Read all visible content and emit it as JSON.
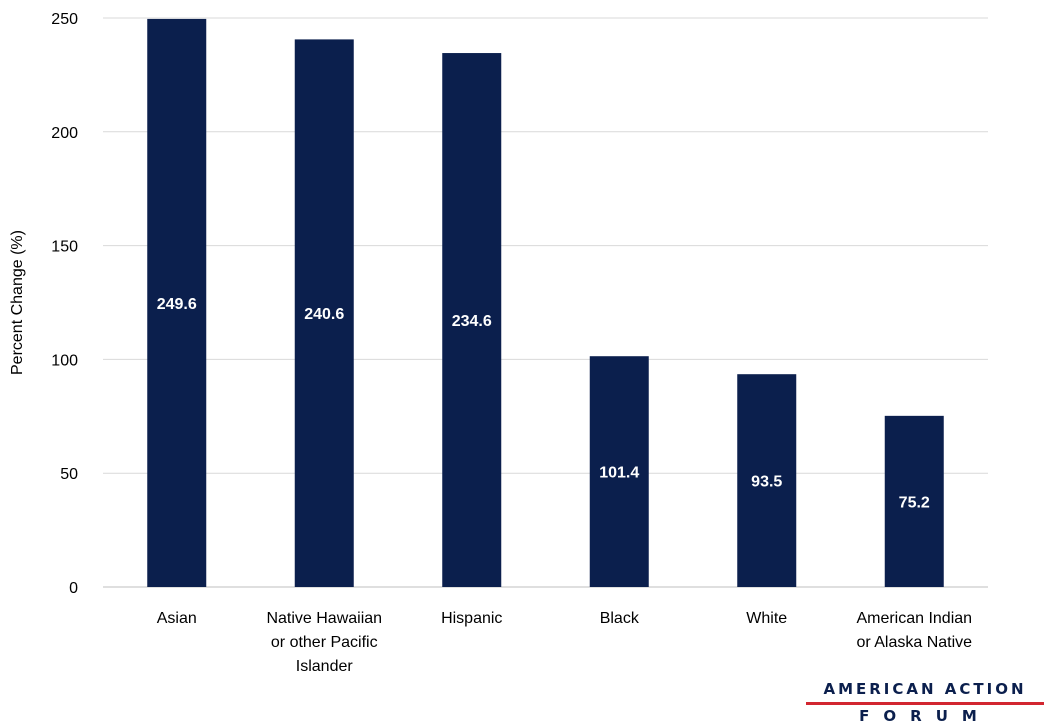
{
  "chart_data": {
    "type": "bar",
    "categories": [
      [
        "Asian"
      ],
      [
        "Native Hawaiian",
        "or other Pacific",
        "Islander"
      ],
      [
        "Hispanic"
      ],
      [
        "Black"
      ],
      [
        "White"
      ],
      [
        "American Indian",
        "or Alaska Native"
      ]
    ],
    "values": [
      249.6,
      240.6,
      234.6,
      101.4,
      93.5,
      75.2
    ],
    "data_labels": [
      "249.6",
      "240.6",
      "234.6",
      "101.4",
      "93.5",
      "75.2"
    ],
    "title": "",
    "xlabel": "",
    "ylabel": "Percent Change (%)",
    "ylim": [
      0,
      250
    ],
    "yticks": [
      0,
      50,
      100,
      150,
      200,
      250
    ],
    "grid": true,
    "legend": "none",
    "bar_color": "#0b1f4d",
    "grid_color": "#d9d9d9",
    "label_color": "#ffffff"
  },
  "logo": {
    "top": "AMERICAN ACTION",
    "bottom": "FORUM",
    "text_color": "#0b1f4d",
    "rule_color": "#d22630"
  }
}
